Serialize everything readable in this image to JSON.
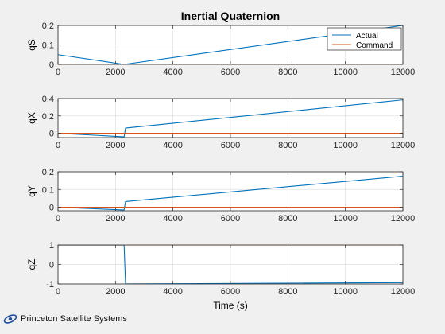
{
  "figure": {
    "title": "Inertial Quaternion",
    "xlabel": "Time (s)"
  },
  "logo": {
    "text": "Princeton Satellite Systems"
  },
  "colors": {
    "actual": "#0072BD",
    "command": "#D95319",
    "axes_bg": "#ffffff",
    "figure_bg": "#f0f0f0",
    "grid": "#dfdfdf"
  },
  "chart_data": [
    {
      "type": "line",
      "ylabel": "qS",
      "xlim": [
        0,
        12000
      ],
      "ylim": [
        0,
        0.2
      ],
      "xticks": [
        0,
        2000,
        4000,
        6000,
        8000,
        10000,
        12000
      ],
      "yticks": [
        0,
        0.1,
        0.2
      ],
      "ytick_labels": [
        "0",
        "0.1",
        "0.2"
      ],
      "grid": true,
      "legend": {
        "position": "top-right",
        "entries": [
          "Actual",
          "Command"
        ]
      },
      "series": [
        {
          "name": "Actual",
          "x": [
            0,
            2300,
            12000
          ],
          "y": [
            0.05,
            0.0,
            0.2
          ]
        },
        {
          "name": "Command",
          "x": [
            0,
            12000
          ],
          "y": [
            0.0,
            0.0
          ]
        }
      ]
    },
    {
      "type": "line",
      "ylabel": "qX",
      "xlim": [
        0,
        12000
      ],
      "ylim": [
        -0.05,
        0.4
      ],
      "xticks": [
        0,
        2000,
        4000,
        6000,
        8000,
        10000,
        12000
      ],
      "yticks": [
        0,
        0.2,
        0.4
      ],
      "ytick_labels": [
        "0",
        "0.2",
        "0.4"
      ],
      "grid": true,
      "series": [
        {
          "name": "Actual",
          "x": [
            0,
            2250,
            2300,
            2350,
            12000
          ],
          "y": [
            0.0,
            -0.04,
            -0.04,
            0.06,
            0.385
          ]
        },
        {
          "name": "Command",
          "x": [
            0,
            12000
          ],
          "y": [
            0.0,
            0.0
          ]
        }
      ]
    },
    {
      "type": "line",
      "ylabel": "qY",
      "xlim": [
        0,
        12000
      ],
      "ylim": [
        -0.02,
        0.2
      ],
      "xticks": [
        0,
        2000,
        4000,
        6000,
        8000,
        10000,
        12000
      ],
      "yticks": [
        0,
        0.1,
        0.2
      ],
      "ytick_labels": [
        "0",
        "0.1",
        "0.2"
      ],
      "grid": true,
      "series": [
        {
          "name": "Actual",
          "x": [
            0,
            2250,
            2300,
            2350,
            12000
          ],
          "y": [
            0.0,
            -0.015,
            -0.015,
            0.032,
            0.175
          ]
        },
        {
          "name": "Command",
          "x": [
            0,
            12000
          ],
          "y": [
            0.0,
            0.0
          ]
        }
      ]
    },
    {
      "type": "line",
      "ylabel": "qZ",
      "xlim": [
        0,
        12000
      ],
      "ylim": [
        -1,
        1
      ],
      "xticks": [
        0,
        2000,
        4000,
        6000,
        8000,
        10000,
        12000
      ],
      "yticks": [
        -1,
        0,
        1
      ],
      "ytick_labels": [
        "-1",
        "0",
        "1"
      ],
      "grid": true,
      "series": [
        {
          "name": "Actual",
          "x": [
            0,
            2300,
            2300,
            2350,
            12000
          ],
          "y": [
            0.999,
            0.999,
            0.98,
            -0.998,
            -0.93
          ]
        },
        {
          "name": "Command",
          "x": [
            0,
            12000
          ],
          "y": [
            1.0,
            1.0
          ]
        }
      ]
    }
  ]
}
